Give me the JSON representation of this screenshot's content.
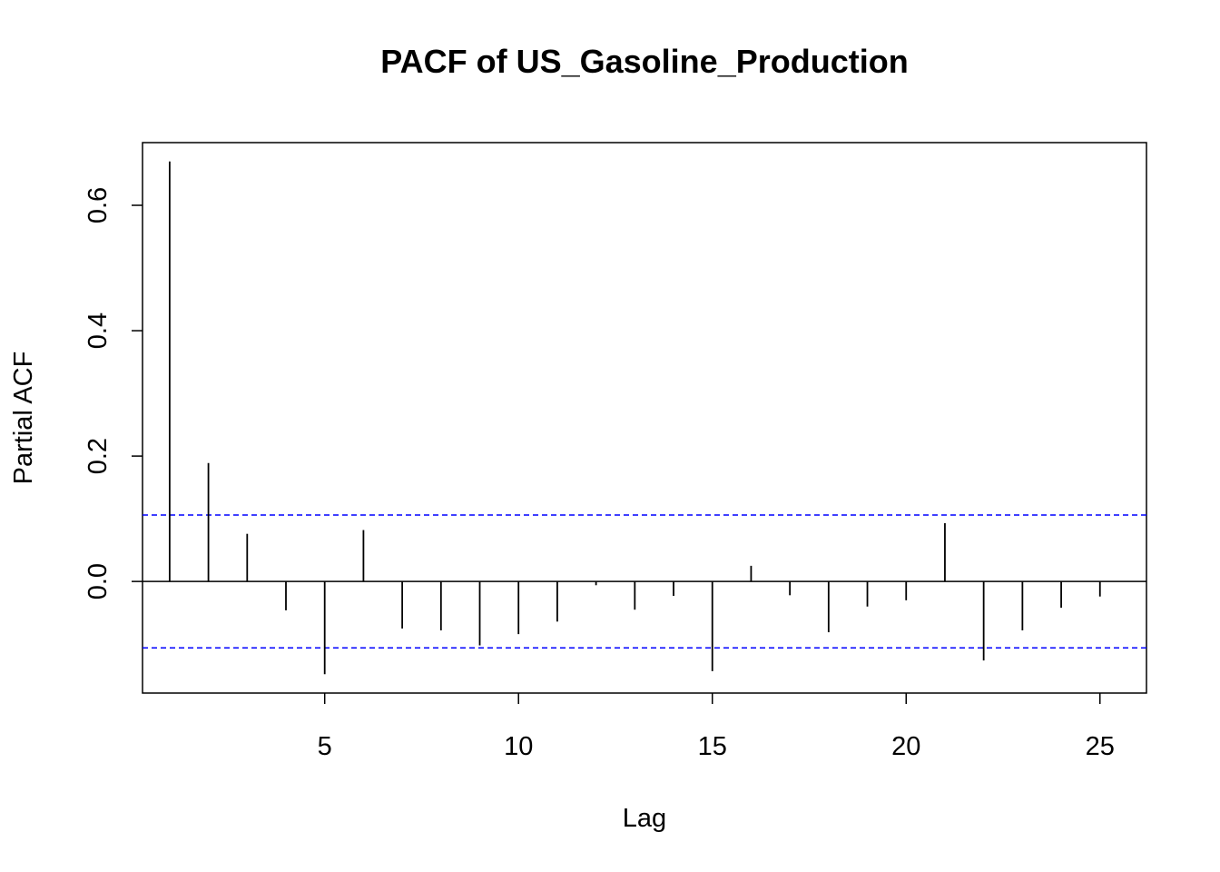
{
  "chart_data": {
    "type": "bar",
    "title": "PACF of US_Gasoline_Production",
    "xlabel": "Lag",
    "ylabel": "Partial ACF",
    "xlim": [
      0.3,
      26.2
    ],
    "ylim": [
      -0.178,
      0.7
    ],
    "xticks": [
      5,
      10,
      15,
      20,
      25
    ],
    "yticks": [
      0.0,
      0.2,
      0.4,
      0.6
    ],
    "ytick_labels": [
      "0.0",
      "0.2",
      "0.4",
      "0.6"
    ],
    "confidence_bound": 0.106,
    "bound_color": "#0000ff",
    "lags": [
      1,
      2,
      3,
      4,
      5,
      6,
      7,
      8,
      9,
      10,
      11,
      12,
      13,
      14,
      15,
      16,
      17,
      18,
      19,
      20,
      21,
      22,
      23,
      24,
      25
    ],
    "values": [
      0.67,
      0.189,
      0.076,
      -0.046,
      -0.148,
      0.082,
      -0.075,
      -0.078,
      -0.102,
      -0.084,
      -0.064,
      -0.006,
      -0.045,
      -0.023,
      -0.143,
      0.025,
      -0.022,
      -0.081,
      -0.04,
      -0.03,
      0.093,
      -0.126,
      -0.078,
      -0.042,
      -0.024
    ],
    "grid": false,
    "legend": "none"
  }
}
